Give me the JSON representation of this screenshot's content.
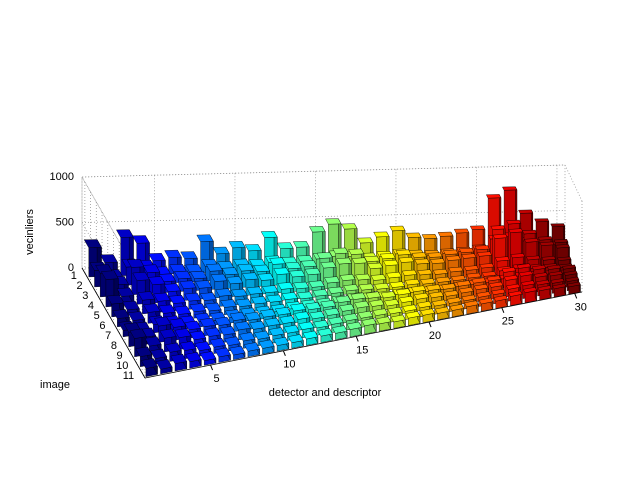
{
  "chart_data": {
    "type": "bar3",
    "xlabel": "detector and descriptor",
    "ylabel": "image",
    "zlabel": "vecinliers",
    "xlim": [
      0.5,
      30.5
    ],
    "xticks": [
      5,
      10,
      15,
      20,
      25,
      30
    ],
    "ylim": [
      0.5,
      11.5
    ],
    "yticks": [
      1,
      2,
      3,
      4,
      5,
      6,
      7,
      8,
      9,
      10,
      11
    ],
    "zlim": [
      0,
      1000
    ],
    "zticks": [
      0,
      500,
      1000
    ],
    "colormap": "jet",
    "grid": true,
    "values": [
      [
        320,
        180,
        260,
        300,
        140,
        90,
        70,
        160,
        200,
        110,
        90
      ],
      [
        150,
        90,
        120,
        100,
        60,
        50,
        40,
        80,
        90,
        60,
        50
      ],
      [
        420,
        200,
        300,
        260,
        150,
        120,
        90,
        180,
        150,
        100,
        80
      ],
      [
        350,
        180,
        230,
        200,
        120,
        90,
        70,
        140,
        130,
        90,
        70
      ],
      [
        150,
        100,
        120,
        110,
        80,
        60,
        50,
        90,
        80,
        60,
        50
      ],
      [
        180,
        120,
        140,
        130,
        90,
        70,
        60,
        100,
        90,
        70,
        60
      ],
      [
        160,
        110,
        130,
        120,
        80,
        60,
        50,
        90,
        80,
        60,
        50
      ],
      [
        340,
        160,
        200,
        180,
        110,
        80,
        60,
        120,
        110,
        80,
        60
      ],
      [
        200,
        130,
        150,
        140,
        90,
        70,
        60,
        100,
        90,
        70,
        60
      ],
      [
        260,
        150,
        180,
        170,
        100,
        80,
        60,
        110,
        100,
        80,
        60
      ],
      [
        220,
        140,
        160,
        150,
        100,
        80,
        60,
        110,
        100,
        80,
        60
      ],
      [
        360,
        170,
        230,
        200,
        120,
        90,
        70,
        130,
        120,
        90,
        70
      ],
      [
        230,
        150,
        170,
        160,
        110,
        80,
        70,
        120,
        100,
        80,
        70
      ],
      [
        240,
        160,
        180,
        170,
        110,
        90,
        70,
        120,
        110,
        90,
        70
      ],
      [
        400,
        180,
        260,
        230,
        140,
        100,
        80,
        150,
        130,
        100,
        80
      ],
      [
        480,
        200,
        300,
        260,
        150,
        110,
        90,
        160,
        140,
        100,
        90
      ],
      [
        420,
        190,
        280,
        250,
        140,
        100,
        80,
        150,
        130,
        100,
        80
      ],
      [
        260,
        160,
        190,
        180,
        120,
        90,
        70,
        130,
        110,
        90,
        70
      ],
      [
        320,
        170,
        210,
        200,
        130,
        90,
        80,
        140,
        120,
        90,
        80
      ],
      [
        380,
        190,
        240,
        220,
        140,
        100,
        80,
        150,
        130,
        100,
        80
      ],
      [
        300,
        170,
        200,
        190,
        130,
        90,
        70,
        140,
        120,
        90,
        70
      ],
      [
        280,
        160,
        190,
        180,
        120,
        90,
        70,
        130,
        110,
        90,
        70
      ],
      [
        300,
        170,
        210,
        200,
        130,
        90,
        80,
        140,
        120,
        90,
        80
      ],
      [
        330,
        180,
        220,
        210,
        130,
        100,
        80,
        150,
        130,
        100,
        80
      ],
      [
        360,
        200,
        240,
        220,
        140,
        100,
        80,
        150,
        130,
        100,
        80
      ],
      [
        700,
        300,
        450,
        400,
        200,
        140,
        100,
        220,
        180,
        130,
        100
      ],
      [
        780,
        320,
        500,
        450,
        220,
        150,
        110,
        240,
        200,
        140,
        110
      ],
      [
        520,
        260,
        380,
        330,
        180,
        130,
        100,
        200,
        160,
        120,
        100
      ],
      [
        420,
        230,
        300,
        280,
        160,
        120,
        90,
        180,
        150,
        110,
        90
      ],
      [
        360,
        200,
        260,
        240,
        140,
        100,
        80,
        160,
        130,
        100,
        80
      ]
    ]
  }
}
